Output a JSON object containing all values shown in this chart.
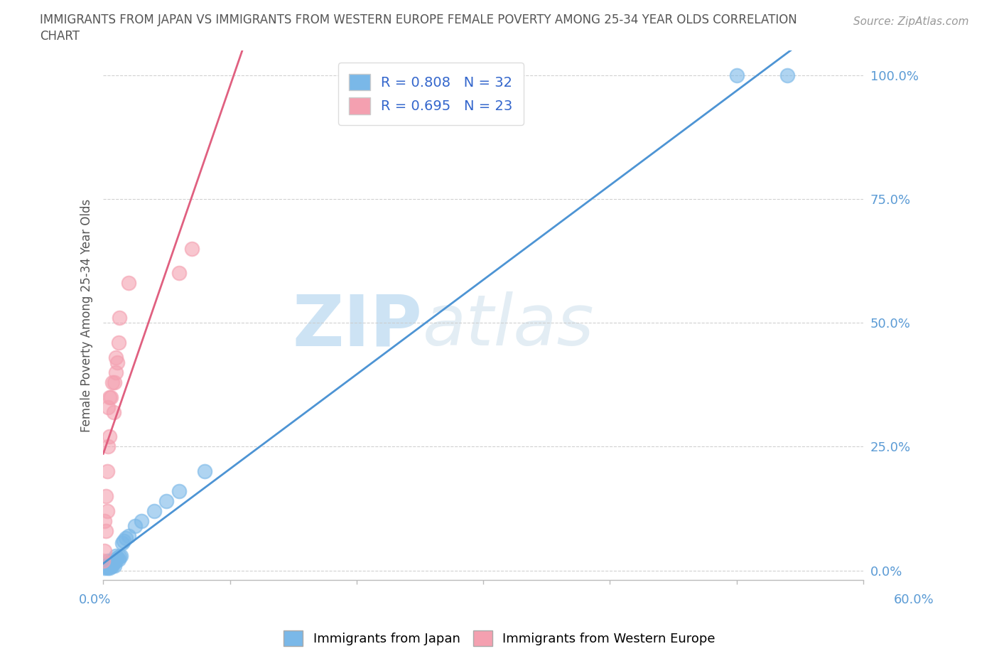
{
  "title_line1": "IMMIGRANTS FROM JAPAN VS IMMIGRANTS FROM WESTERN EUROPE FEMALE POVERTY AMONG 25-34 YEAR OLDS CORRELATION",
  "title_line2": "CHART",
  "source": "Source: ZipAtlas.com",
  "ylabel": "Female Poverty Among 25-34 Year Olds",
  "xlim": [
    0,
    0.6
  ],
  "ylim": [
    -0.02,
    1.05
  ],
  "yticks": [
    0.0,
    0.25,
    0.5,
    0.75,
    1.0
  ],
  "ytick_labels": [
    "0.0%",
    "25.0%",
    "50.0%",
    "75.0%",
    "100.0%"
  ],
  "xtick_labels": [
    "0.0%",
    "",
    "",
    "",
    "",
    "",
    "60.0%"
  ],
  "legend_r1": "R = 0.808",
  "legend_n1": "N = 32",
  "legend_r2": "R = 0.695",
  "legend_n2": "N = 23",
  "color_japan": "#7ab8e8",
  "color_europe": "#f4a0b0",
  "color_japan_line": "#4d94d4",
  "color_europe_line": "#e06080",
  "color_ytick": "#5b9bd5",
  "watermark": "ZIPatlas",
  "background_color": "#ffffff",
  "grid_color": "#cccccc",
  "japan_x": [
    0.001,
    0.002,
    0.003,
    0.003,
    0.004,
    0.004,
    0.005,
    0.005,
    0.006,
    0.006,
    0.007,
    0.007,
    0.008,
    0.009,
    0.01,
    0.01,
    0.011,
    0.012,
    0.013,
    0.014,
    0.015,
    0.016,
    0.018,
    0.02,
    0.025,
    0.03,
    0.04,
    0.05,
    0.06,
    0.08,
    0.5,
    0.54
  ],
  "japan_y": [
    0.005,
    0.008,
    0.005,
    0.01,
    0.01,
    0.02,
    0.005,
    0.015,
    0.008,
    0.018,
    0.01,
    0.02,
    0.015,
    0.01,
    0.02,
    0.03,
    0.025,
    0.022,
    0.028,
    0.03,
    0.055,
    0.06,
    0.065,
    0.07,
    0.09,
    0.1,
    0.12,
    0.14,
    0.16,
    0.2,
    1.0,
    1.0
  ],
  "europe_x": [
    0.0,
    0.001,
    0.001,
    0.002,
    0.002,
    0.003,
    0.003,
    0.004,
    0.004,
    0.005,
    0.005,
    0.006,
    0.007,
    0.008,
    0.009,
    0.01,
    0.01,
    0.011,
    0.012,
    0.013,
    0.02,
    0.06,
    0.07
  ],
  "europe_y": [
    0.02,
    0.04,
    0.1,
    0.08,
    0.15,
    0.12,
    0.2,
    0.25,
    0.33,
    0.27,
    0.35,
    0.35,
    0.38,
    0.32,
    0.38,
    0.4,
    0.43,
    0.42,
    0.46,
    0.51,
    0.58,
    0.6,
    0.65
  ]
}
